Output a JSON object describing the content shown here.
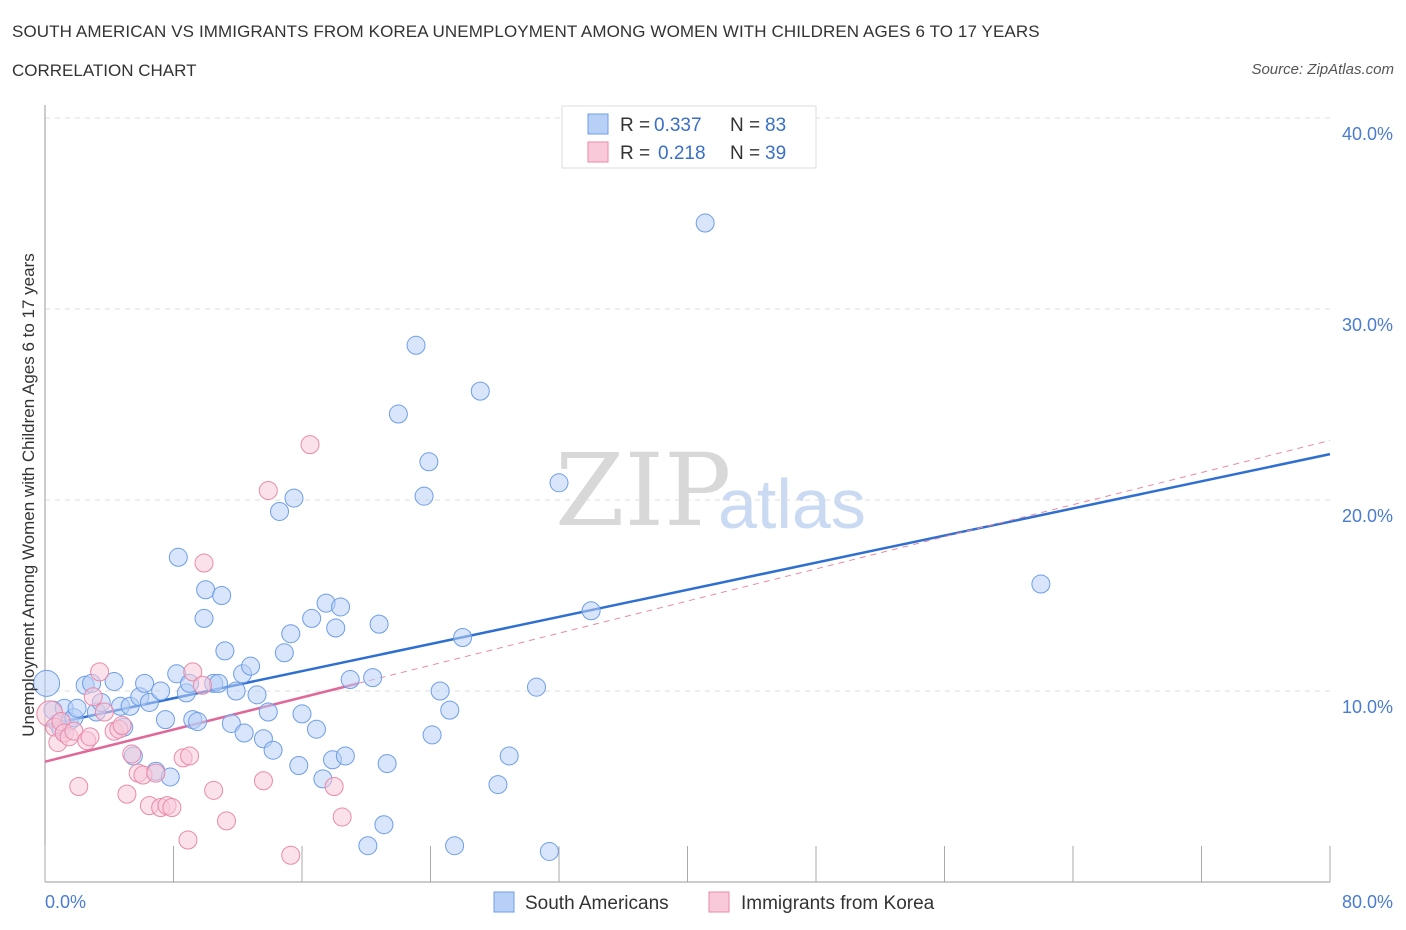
{
  "header": {
    "title": "SOUTH AMERICAN VS IMMIGRANTS FROM KOREA UNEMPLOYMENT AMONG WOMEN WITH CHILDREN AGES 6 TO 17 YEARS",
    "subtitle": "CORRELATION CHART",
    "source": "Source: ZipAtlas.com"
  },
  "watermark": {
    "zip": "ZIP",
    "atlas": "atlas"
  },
  "legend": {
    "rows": [
      {
        "r_label": "R =",
        "r_value": "0.337",
        "n_label": "N =",
        "n_value": "83",
        "color": "#6e9ee8",
        "fill": "#b8d0f5"
      },
      {
        "r_label": "R =",
        "r_value": "0.218",
        "n_label": "N =",
        "n_value": "39",
        "color": "#e98aaa",
        "fill": "#f8c9d8"
      }
    ]
  },
  "chart_data": {
    "type": "scatter",
    "title": "SOUTH AMERICAN VS IMMIGRANTS FROM KOREA UNEMPLOYMENT AMONG WOMEN WITH CHILDREN AGES 6 TO 17 YEARS",
    "subtitle": "CORRELATION CHART",
    "xlabel": "",
    "ylabel": "Unemployment Among Women with Children Ages 6 to 17 years",
    "xlim": [
      0,
      80
    ],
    "ylim": [
      0,
      40
    ],
    "x_tick_labels": [
      "0.0%",
      "80.0%"
    ],
    "y_ticks": [
      10,
      20,
      30,
      40
    ],
    "y_tick_labels": [
      "10.0%",
      "20.0%",
      "30.0%",
      "40.0%"
    ],
    "grid": true,
    "legend_position": "top-center",
    "series": [
      {
        "name": "South Americans",
        "color": "#6e9ee8",
        "fill": "#b8d0f5",
        "trend": {
          "x": [
            0,
            80
          ],
          "y": [
            8.2,
            22.4
          ]
        },
        "points": [
          [
            0.1,
            10.4
          ],
          [
            0.5,
            9.0
          ],
          [
            0.8,
            8.3
          ],
          [
            1.0,
            8.0
          ],
          [
            1.2,
            9.1
          ],
          [
            1.5,
            8.4
          ],
          [
            1.8,
            8.6
          ],
          [
            2.0,
            9.1
          ],
          [
            2.5,
            10.3
          ],
          [
            2.9,
            10.4
          ],
          [
            3.2,
            8.9
          ],
          [
            3.5,
            9.4
          ],
          [
            4.3,
            10.5
          ],
          [
            4.7,
            9.2
          ],
          [
            4.9,
            8.1
          ],
          [
            5.3,
            9.2
          ],
          [
            5.5,
            6.6
          ],
          [
            5.9,
            9.7
          ],
          [
            6.2,
            10.4
          ],
          [
            6.5,
            9.4
          ],
          [
            6.9,
            5.8
          ],
          [
            7.2,
            10.0
          ],
          [
            7.5,
            8.5
          ],
          [
            7.8,
            5.5
          ],
          [
            8.2,
            10.9
          ],
          [
            8.3,
            17.0
          ],
          [
            8.8,
            9.9
          ],
          [
            9.0,
            10.4
          ],
          [
            9.2,
            8.5
          ],
          [
            9.5,
            8.4
          ],
          [
            9.9,
            13.8
          ],
          [
            10.0,
            15.3
          ],
          [
            10.5,
            10.4
          ],
          [
            10.8,
            10.4
          ],
          [
            11.0,
            15.0
          ],
          [
            11.2,
            12.1
          ],
          [
            11.6,
            8.3
          ],
          [
            11.9,
            10.0
          ],
          [
            12.3,
            10.9
          ],
          [
            12.4,
            7.8
          ],
          [
            12.8,
            11.3
          ],
          [
            13.2,
            9.8
          ],
          [
            13.6,
            7.5
          ],
          [
            13.9,
            8.9
          ],
          [
            14.2,
            6.9
          ],
          [
            14.9,
            12.0
          ],
          [
            15.3,
            13.0
          ],
          [
            15.5,
            20.1
          ],
          [
            15.8,
            6.1
          ],
          [
            16.0,
            8.8
          ],
          [
            16.6,
            13.8
          ],
          [
            16.9,
            8.0
          ],
          [
            17.3,
            5.4
          ],
          [
            17.5,
            14.6
          ],
          [
            17.9,
            6.4
          ],
          [
            18.1,
            13.3
          ],
          [
            18.4,
            14.4
          ],
          [
            18.7,
            6.6
          ],
          [
            19.0,
            10.6
          ],
          [
            20.1,
            1.9
          ],
          [
            20.4,
            10.7
          ],
          [
            20.8,
            13.5
          ],
          [
            21.1,
            3.0
          ],
          [
            21.3,
            6.2
          ],
          [
            23.1,
            28.1
          ],
          [
            23.6,
            20.2
          ],
          [
            23.9,
            22.0
          ],
          [
            24.1,
            7.7
          ],
          [
            24.6,
            10.0
          ],
          [
            25.2,
            9.0
          ],
          [
            25.5,
            1.9
          ],
          [
            26.0,
            12.8
          ],
          [
            27.1,
            25.7
          ],
          [
            28.2,
            5.1
          ],
          [
            28.9,
            6.6
          ],
          [
            30.6,
            10.2
          ],
          [
            31.4,
            1.6
          ],
          [
            32.0,
            20.9
          ],
          [
            34.0,
            14.2
          ],
          [
            41.1,
            34.5
          ],
          [
            62.0,
            15.6
          ],
          [
            22.0,
            24.5
          ],
          [
            14.6,
            19.4
          ]
        ]
      },
      {
        "name": "Immigrants from Korea",
        "color": "#e98aaa",
        "fill": "#f8c9d8",
        "trend": {
          "x": [
            0,
            19.5
          ],
          "y": [
            6.3,
            10.4
          ]
        },
        "points": [
          [
            0.3,
            8.8
          ],
          [
            0.6,
            8.1
          ],
          [
            0.8,
            7.3
          ],
          [
            1.0,
            8.4
          ],
          [
            1.2,
            7.8
          ],
          [
            1.5,
            7.6
          ],
          [
            1.8,
            7.9
          ],
          [
            2.1,
            5.0
          ],
          [
            2.6,
            7.4
          ],
          [
            3.0,
            9.7
          ],
          [
            3.4,
            11.0
          ],
          [
            3.7,
            8.9
          ],
          [
            4.3,
            7.9
          ],
          [
            4.6,
            8.0
          ],
          [
            5.1,
            4.6
          ],
          [
            5.4,
            6.7
          ],
          [
            5.8,
            5.7
          ],
          [
            6.1,
            5.6
          ],
          [
            6.5,
            4.0
          ],
          [
            6.9,
            5.7
          ],
          [
            7.2,
            3.9
          ],
          [
            7.6,
            4.0
          ],
          [
            7.9,
            3.9
          ],
          [
            8.6,
            6.5
          ],
          [
            8.9,
            2.2
          ],
          [
            9.0,
            6.6
          ],
          [
            9.2,
            11.0
          ],
          [
            9.8,
            10.3
          ],
          [
            9.9,
            16.7
          ],
          [
            10.5,
            4.8
          ],
          [
            11.3,
            3.2
          ],
          [
            13.6,
            5.3
          ],
          [
            13.9,
            20.5
          ],
          [
            15.3,
            1.4
          ],
          [
            16.5,
            22.9
          ],
          [
            18.0,
            5.0
          ],
          [
            18.5,
            3.4
          ],
          [
            4.8,
            8.2
          ],
          [
            2.8,
            7.6
          ]
        ]
      }
    ]
  },
  "bottom_legend": {
    "items": [
      {
        "label": "South Americans",
        "color": "#6e9ee8",
        "fill": "#b8d0f5"
      },
      {
        "label": "Immigrants from Korea",
        "color": "#e98aaa",
        "fill": "#f8c9d8"
      }
    ]
  }
}
